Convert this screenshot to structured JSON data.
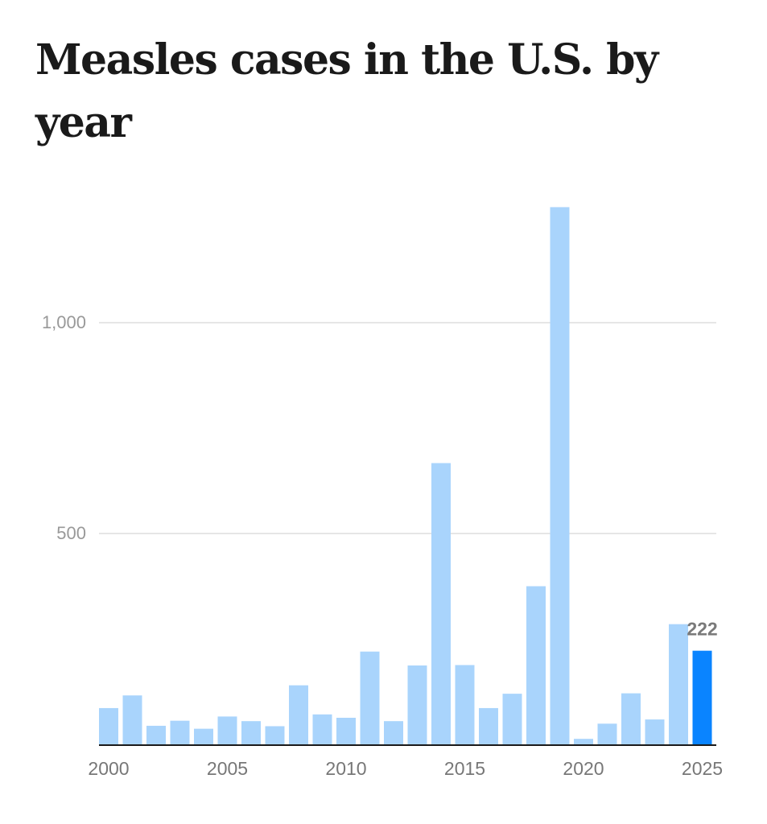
{
  "chart_data": {
    "type": "bar",
    "title": "Measles cases in the U.S. by year",
    "xlabel": "",
    "ylabel": "",
    "categories": [
      2000,
      2001,
      2002,
      2003,
      2004,
      2005,
      2006,
      2007,
      2008,
      2009,
      2010,
      2011,
      2012,
      2013,
      2014,
      2015,
      2016,
      2017,
      2018,
      2019,
      2020,
      2021,
      2022,
      2023,
      2024,
      2025
    ],
    "values": [
      86,
      116,
      44,
      56,
      37,
      66,
      55,
      43,
      140,
      71,
      63,
      220,
      55,
      187,
      667,
      188,
      86,
      120,
      375,
      1274,
      13,
      49,
      121,
      59,
      285,
      222
    ],
    "ylim": [
      0,
      1300
    ],
    "y_ticks": [
      {
        "value": 500,
        "label": "500"
      },
      {
        "value": 1000,
        "label": "1,000"
      }
    ],
    "x_ticks": [
      {
        "value": 2000,
        "label": "2000"
      },
      {
        "value": 2005,
        "label": "2005"
      },
      {
        "value": 2010,
        "label": "2010"
      },
      {
        "value": 2015,
        "label": "2015"
      },
      {
        "value": 2020,
        "label": "2020"
      },
      {
        "value": 2025,
        "label": "2025"
      }
    ],
    "highlight": {
      "category": 2025,
      "label": "222"
    },
    "grid": true,
    "legend": "none",
    "colors": {
      "bar": "#a9d4fc",
      "highlight": "#0a84ff",
      "grid": "#e6e6e6",
      "axis": "#1a1a1a",
      "tick_text": "#999999",
      "x_tick_text": "#777777",
      "annotation": "#7a7a7a",
      "title": "#1a1a1a"
    }
  }
}
